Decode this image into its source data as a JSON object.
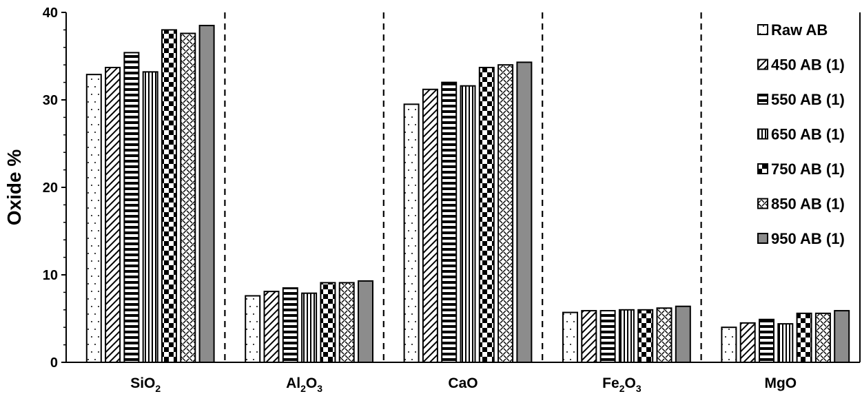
{
  "chart_data": {
    "type": "bar",
    "title": "",
    "xlabel": "",
    "ylabel": "Oxide %",
    "ylim": [
      0,
      40
    ],
    "yticks": [
      "0",
      "10",
      "20",
      "30",
      "40"
    ],
    "categories": [
      {
        "base": "SiO",
        "sub": "2",
        "after": ""
      },
      {
        "base": "Al",
        "sub": "2",
        "after": "O",
        "sub2": "3"
      },
      {
        "base": "CaO",
        "sub": "",
        "after": ""
      },
      {
        "base": "Fe",
        "sub": "2",
        "after": "O",
        "sub2": "3"
      },
      {
        "base": "MgO",
        "sub": "",
        "after": ""
      }
    ],
    "series": [
      {
        "name": "Raw AB",
        "pattern": "dots",
        "values": [
          32.9,
          7.6,
          29.5,
          5.7,
          4.0
        ]
      },
      {
        "name": "450 AB (1)",
        "pattern": "diagonal",
        "values": [
          33.7,
          8.1,
          31.2,
          5.9,
          4.5
        ]
      },
      {
        "name": "550 AB (1)",
        "pattern": "horizontal",
        "values": [
          35.4,
          8.5,
          32.0,
          5.9,
          4.9
        ]
      },
      {
        "name": "650 AB (1)",
        "pattern": "vertical",
        "values": [
          33.2,
          7.9,
          31.6,
          6.0,
          4.4
        ]
      },
      {
        "name": "750 AB (1)",
        "pattern": "checker",
        "values": [
          38.0,
          9.1,
          33.7,
          6.0,
          5.6
        ]
      },
      {
        "name": "850 AB (1)",
        "pattern": "dash-grid",
        "values": [
          37.6,
          9.1,
          34.0,
          6.2,
          5.6
        ]
      },
      {
        "name": "950 AB (1)",
        "pattern": "solid-gray",
        "values": [
          38.5,
          9.3,
          34.3,
          6.4,
          5.9
        ]
      }
    ],
    "legend_position": "right",
    "gridlines": false,
    "category_separators": "dashed"
  }
}
